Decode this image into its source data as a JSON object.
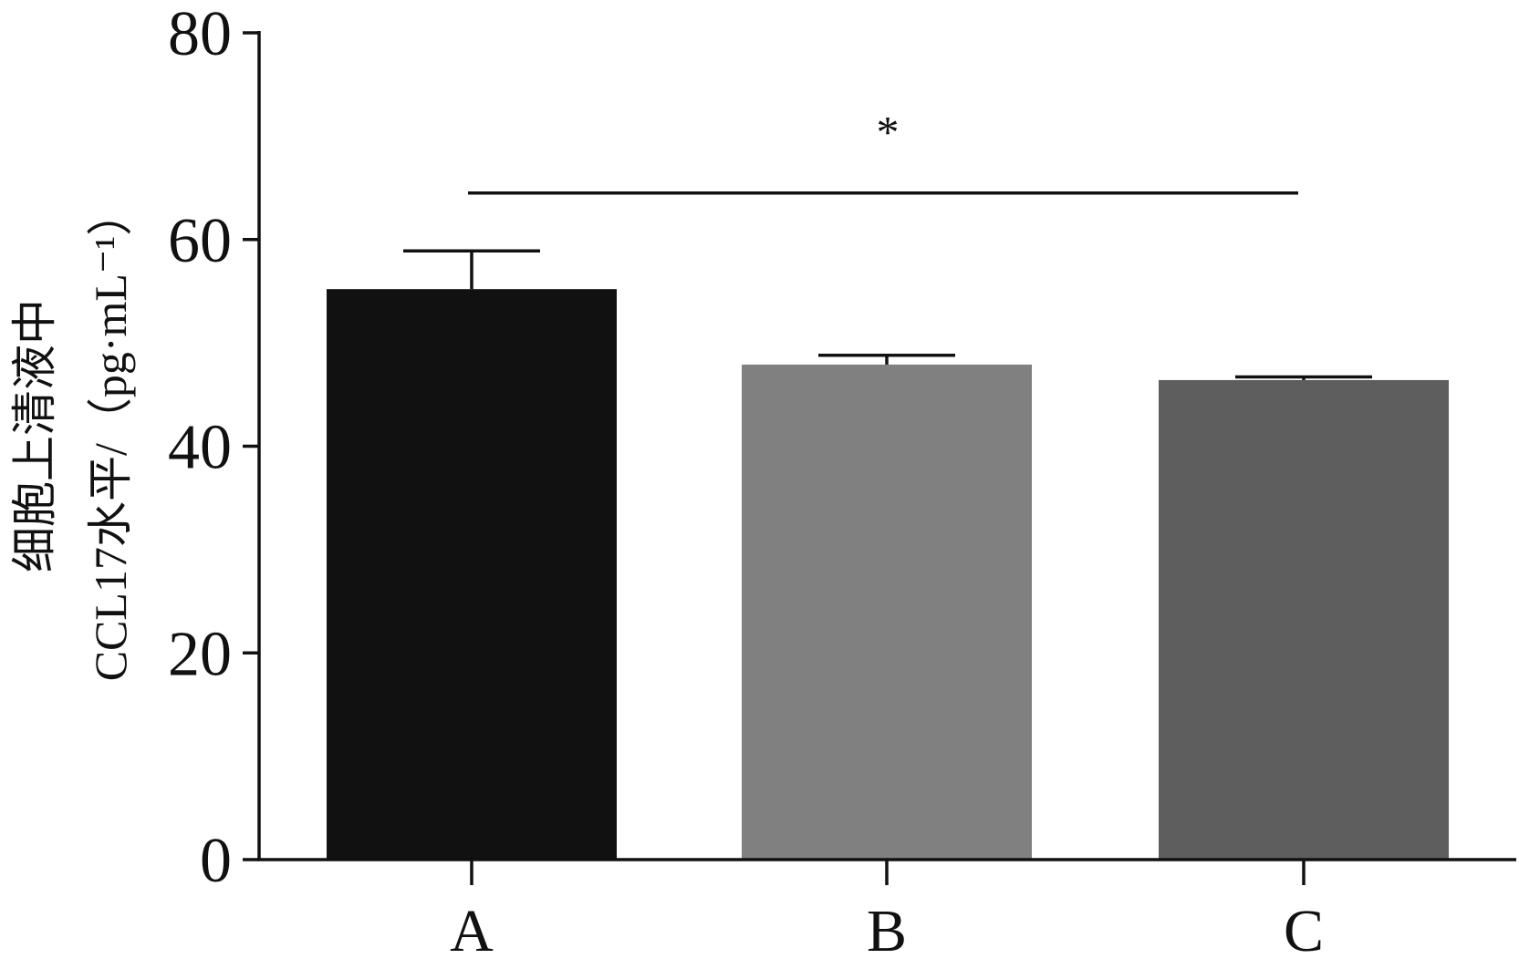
{
  "chart_data": {
    "type": "bar",
    "categories": [
      "A",
      "B",
      "C"
    ],
    "values": [
      55.2,
      47.9,
      46.4
    ],
    "errors": [
      3.7,
      0.9,
      0.3
    ],
    "colors": [
      "#111111",
      "#808080",
      "#5e5e5e"
    ],
    "ylabel_line1": "细胞上清液中",
    "ylabel_line2": "CCL17水平/（pg·mL⁻¹）",
    "ylim": [
      0,
      80
    ],
    "yticks": [
      0,
      20,
      40,
      60,
      80
    ],
    "yticklabels": [
      "0",
      "20",
      "40",
      "60",
      "80"
    ],
    "significance": {
      "label": "*",
      "from_category": "A",
      "to_category": "C",
      "y": 64.5
    },
    "grid": false,
    "legend": "none"
  }
}
